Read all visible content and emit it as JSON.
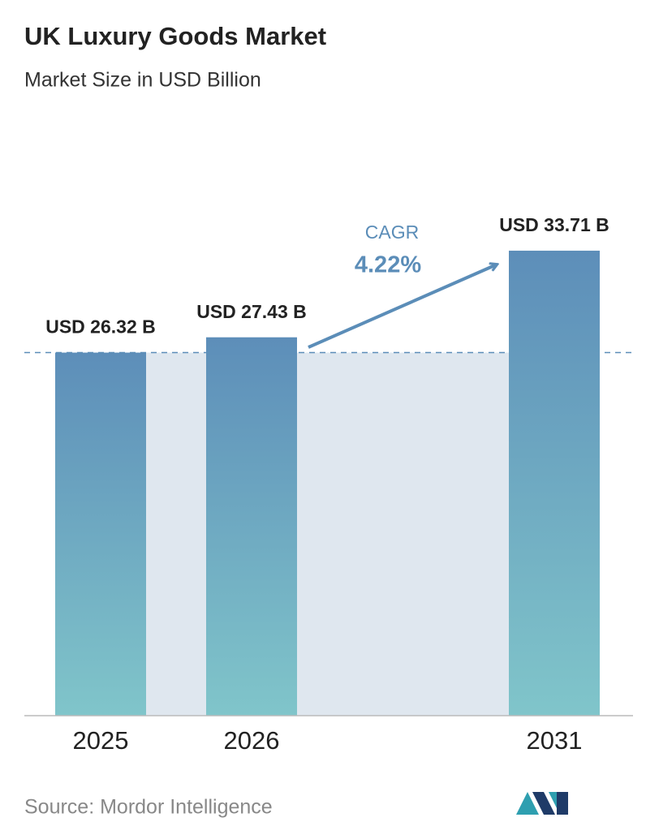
{
  "chart_data": {
    "type": "bar",
    "title": "UK Luxury Goods Market",
    "subtitle": "Market Size in USD Billion",
    "categories": [
      "2025",
      "2026",
      "2031"
    ],
    "values": [
      26.32,
      27.43,
      33.71
    ],
    "value_labels": [
      "USD 26.32 B",
      "USD 27.43 B",
      "USD 33.71 B"
    ],
    "gradient": [
      "#5d8eb9",
      "#80c5ca"
    ],
    "cagr": {
      "label": "CAGR",
      "value": 4.22,
      "value_label": "4.22%"
    },
    "source": "Source:  Mordor Intelligence"
  }
}
